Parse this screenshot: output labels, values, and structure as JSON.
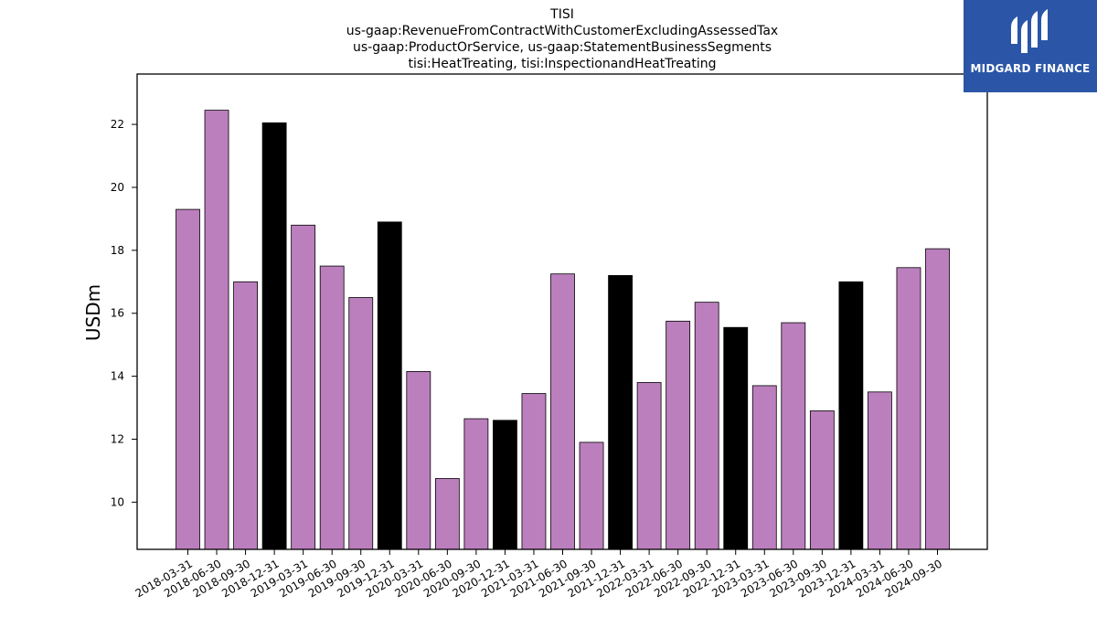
{
  "chart_data": {
    "type": "bar",
    "title": "TISI",
    "subtitle_lines": [
      "us-gaap:RevenueFromContractWithCustomerExcludingAssessedTax",
      "us-gaap:ProductOrService, us-gaap:StatementBusinessSegments",
      "tisi:HeatTreating, tisi:InspectionandHeatTreating"
    ],
    "xlabel": "",
    "ylabel": "USDm",
    "ylim": [
      8.5,
      23.6
    ],
    "yticks": [
      10,
      12,
      14,
      16,
      18,
      20,
      22
    ],
    "grid": false,
    "categories": [
      "2018-03-31",
      "2018-06-30",
      "2018-09-30",
      "2018-12-31",
      "2019-03-31",
      "2019-06-30",
      "2019-09-30",
      "2019-12-31",
      "2020-03-31",
      "2020-06-30",
      "2020-09-30",
      "2020-12-31",
      "2021-03-31",
      "2021-06-30",
      "2021-09-30",
      "2021-12-31",
      "2022-03-31",
      "2022-06-30",
      "2022-09-30",
      "2022-12-31",
      "2023-03-31",
      "2023-06-30",
      "2023-09-30",
      "2023-12-31",
      "2024-03-31",
      "2024-06-30",
      "2024-09-30"
    ],
    "values": [
      19.3,
      22.45,
      17.0,
      22.05,
      18.8,
      17.5,
      16.5,
      18.9,
      14.15,
      10.75,
      12.65,
      12.6,
      13.45,
      17.25,
      11.9,
      17.2,
      13.8,
      15.75,
      16.35,
      15.55,
      13.7,
      15.7,
      12.9,
      17.0,
      13.5,
      17.45,
      18.05
    ],
    "colors": {
      "quarter": "#bc7fbe",
      "year_end": "#000000",
      "edge": "#000000"
    },
    "year_end_categories": [
      "2018-12-31",
      "2019-12-31",
      "2020-12-31",
      "2021-12-31",
      "2022-12-31",
      "2023-12-31"
    ]
  },
  "logo": {
    "text": "MIDGARD FINANCE",
    "background": "#2b56a8"
  }
}
